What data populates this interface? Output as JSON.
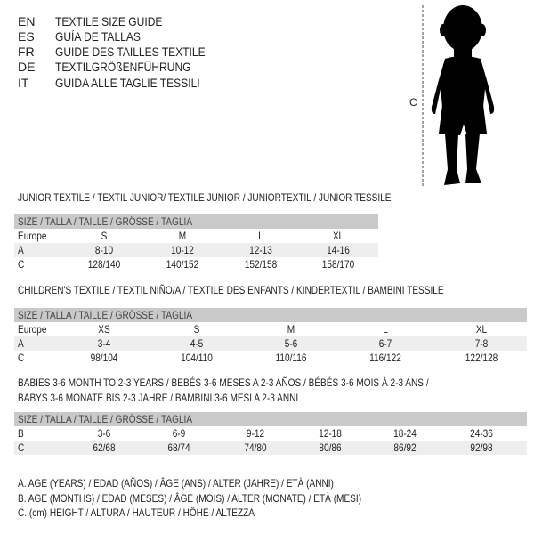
{
  "languages": [
    {
      "code": "EN",
      "title": "TEXTILE SIZE GUIDE"
    },
    {
      "code": "ES",
      "title": "GUÍA DE TALLAS"
    },
    {
      "code": "FR",
      "title": "GUIDE DES TAILLES TEXTILE"
    },
    {
      "code": "DE",
      "title": "TEXTILGRÖßENFÜHRUNG"
    },
    {
      "code": "IT",
      "title": "GUIDA ALLE TAGLIE TESSILI"
    }
  ],
  "figure": {
    "measure_label": "C"
  },
  "junior": {
    "title": "JUNIOR TEXTILE / TEXTIL JUNIOR/ TEXTILE JUNIOR / JUNIORTEXTIL / JUNIOR TESSILE",
    "header": "SIZE / TALLA / TAILLE / GRÖSSE / TAGLIA",
    "rows": [
      {
        "label": "Europe",
        "cells": [
          "S",
          "M",
          "L",
          "XL"
        ]
      },
      {
        "label": "A",
        "cells": [
          "8-10",
          "10-12",
          "12-13",
          "14-16"
        ]
      },
      {
        "label": "C",
        "cells": [
          "128/140",
          "140/152",
          "152/158",
          "158/170"
        ]
      }
    ]
  },
  "children": {
    "title": "CHILDREN'S TEXTILE / TEXTIL NIÑO/A / TEXTILE DES ENFANTS / KINDERTEXTIL / BAMBINI TESSILE",
    "header": "SIZE / TALLA / TAILLE / GRÖSSE / TAGLIA",
    "rows": [
      {
        "label": "Europe",
        "cells": [
          "XS",
          "S",
          "M",
          "L",
          "XL"
        ]
      },
      {
        "label": "A",
        "cells": [
          "3-4",
          "4-5",
          "5-6",
          "6-7",
          "7-8"
        ]
      },
      {
        "label": "C",
        "cells": [
          "98/104",
          "104/110",
          "110/116",
          "116/122",
          "122/128"
        ]
      }
    ]
  },
  "babies": {
    "title_line1": "BABIES 3-6 MONTH TO 2-3 YEARS / BEBÉS 3-6 MESES A 2-3 AÑOS / BÉBÉS 3-6 MOIS À 2-3 ANS /",
    "title_line2": "BABYS 3-6 MONATE BIS 2-3 JAHRE / BAMBINI 3-6 MESI A 2-3 ANNI",
    "header": "SIZE / TALLA / TAILLE / GRÖSSE / TAGLIA",
    "rows": [
      {
        "label": "B",
        "cells": [
          "3-6",
          "6-9",
          "9-12",
          "12-18",
          "18-24",
          "24-36"
        ]
      },
      {
        "label": "C",
        "cells": [
          "62/68",
          "68/74",
          "74/80",
          "80/86",
          "86/92",
          "92/98"
        ]
      }
    ]
  },
  "legend": [
    "A. AGE (YEARS) / EDAD (AÑOS) / ÂGE (ANS) / ALTER (JAHRE) / ETÀ (ANNI)",
    "B. AGE (MONTHS) / EDAD (MESES) / ÂGE (MOIS) / ALTER (MONATE) / ETÀ (MESI)",
    "C. (cm) HEIGHT / ALTURA / HAUTEUR / HÖHE / ALTEZZA"
  ]
}
